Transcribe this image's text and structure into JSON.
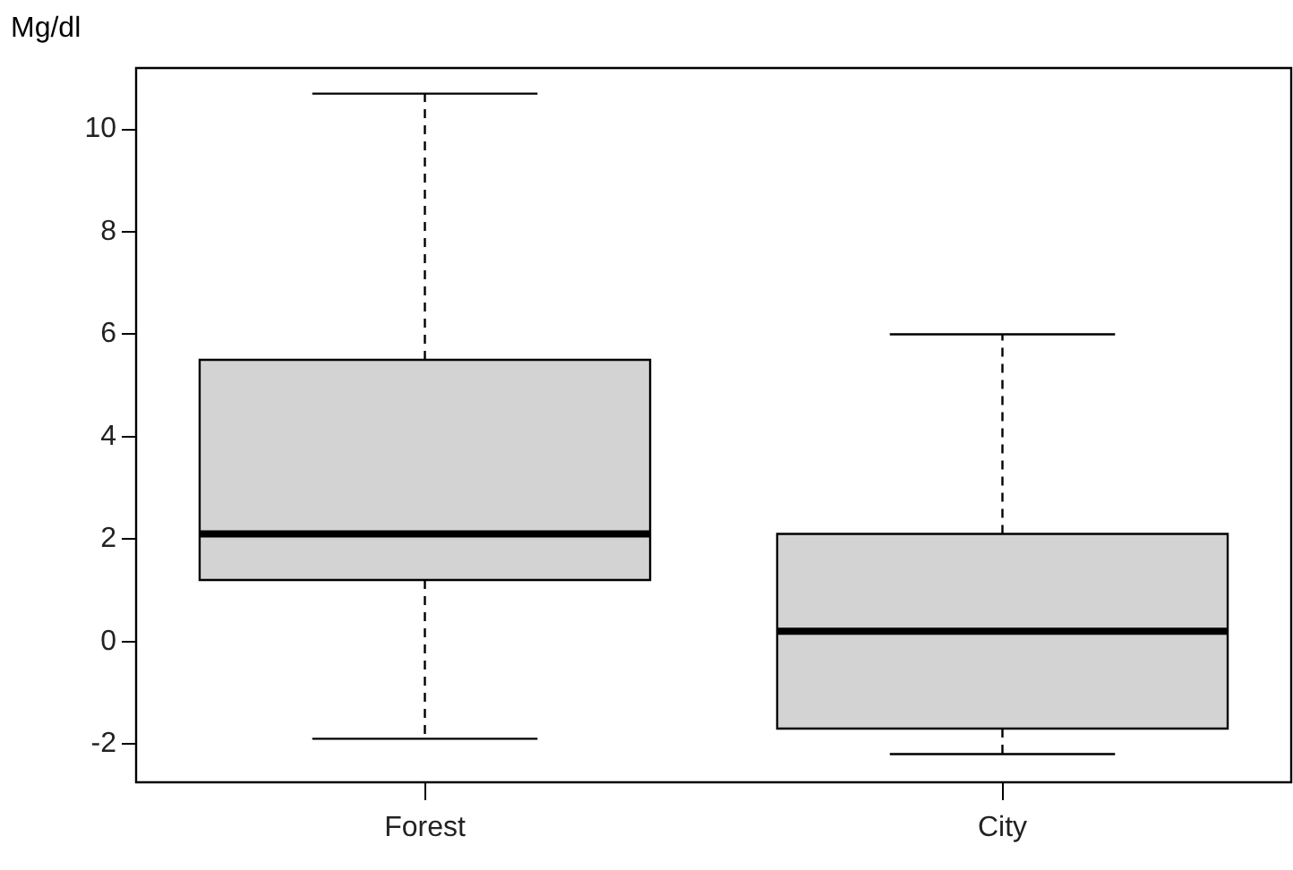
{
  "chart_data": {
    "type": "box",
    "ylabel": "Mg/dl",
    "categories": [
      "Forest",
      "City"
    ],
    "boxes": [
      {
        "low": -1.9,
        "q1": 1.2,
        "median": 2.1,
        "q3": 5.5,
        "high": 10.7
      },
      {
        "low": -2.2,
        "q1": -1.7,
        "median": 0.2,
        "q3": 2.1,
        "high": 6.0
      }
    ],
    "color": "#d3d3d3",
    "ylim": [
      -2.75,
      11.2
    ],
    "yticks": [
      -2,
      0,
      2,
      4,
      6,
      8,
      10
    ],
    "grid": false
  }
}
